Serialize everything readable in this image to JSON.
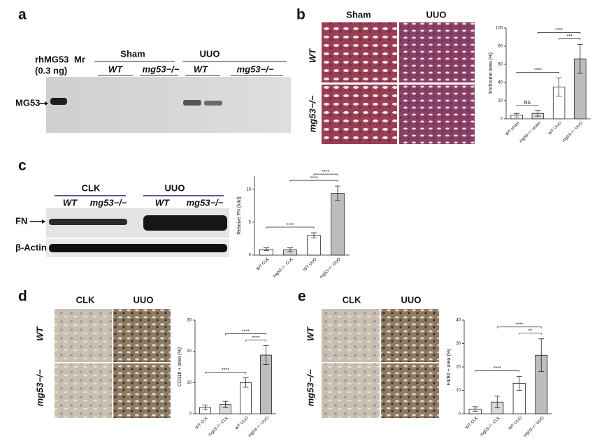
{
  "figure": {
    "a": {
      "letter": "a",
      "standard": "rhMG53",
      "standard_amount": "(0.3 ng)",
      "marker": "Mr",
      "groups": [
        "Sham",
        "UUO"
      ],
      "genotypes": [
        "WT",
        "mg53−/−",
        "WT",
        "mg53−/−"
      ],
      "band": "MG53"
    },
    "b": {
      "letter": "b",
      "columns": [
        "Sham",
        "UUO"
      ],
      "rows": [
        "WT",
        "mg53−/−"
      ]
    },
    "c": {
      "letter": "c",
      "groups": [
        "CLK",
        "UUO"
      ],
      "genotypes": [
        "WT",
        "mg53−/−",
        "WT",
        "mg53−/−"
      ],
      "bands": [
        "FN",
        "β-Actin"
      ]
    },
    "d": {
      "letter": "d",
      "columns": [
        "CLK",
        "UUO"
      ],
      "rows": [
        "WT",
        "mg53−/−"
      ]
    },
    "e": {
      "letter": "e",
      "columns": [
        "CLK",
        "UUO"
      ],
      "rows": [
        "WT",
        "mg53−/−"
      ]
    }
  },
  "chart_data": [
    {
      "type": "bar",
      "y_label": "Trichrome area (%)",
      "categories": [
        "WT sham",
        "mg53−/− sham",
        "WT UUO",
        "mg53−/− UUO"
      ],
      "values": [
        4,
        6,
        35,
        66
      ],
      "errors": [
        2,
        3,
        10,
        16
      ],
      "colors": [
        "#ffffff",
        "#d9d9d9",
        "#ffffff",
        "#bdbdbd"
      ],
      "ylim": [
        0,
        100
      ],
      "yticks": [
        0,
        20,
        40,
        60,
        80,
        100
      ],
      "comparisons": [
        {
          "pair": [
            0,
            1
          ],
          "label": "NS"
        },
        {
          "pair": [
            0,
            2
          ],
          "label": "****"
        },
        {
          "pair": [
            2,
            3
          ],
          "label": "***"
        },
        {
          "pair": [
            1,
            3
          ],
          "label": "****"
        }
      ]
    },
    {
      "type": "bar",
      "y_label": "Relative FN (fold)",
      "categories": [
        "WT CLK",
        "mg53−/− CLK",
        "WT UUO",
        "mg53−/− UUO"
      ],
      "values": [
        0.9,
        0.8,
        3.0,
        9.4
      ],
      "errors": [
        0.2,
        0.3,
        0.4,
        1.1
      ],
      "colors": [
        "#ffffff",
        "#d9d9d9",
        "#ffffff",
        "#bdbdbd"
      ],
      "ylim": [
        0,
        12
      ],
      "yticks": [
        0,
        5,
        10
      ],
      "comparisons": [
        {
          "pair": [
            0,
            2
          ],
          "label": "****"
        },
        {
          "pair": [
            1,
            3
          ],
          "label": "****"
        },
        {
          "pair": [
            2,
            3
          ],
          "label": "****"
        }
      ]
    },
    {
      "type": "bar",
      "y_label": "CD11b + area (%)",
      "categories": [
        "WT CLK",
        "mg53−/− CLK",
        "WT UUO",
        "mg53−/− UUO"
      ],
      "values": [
        2,
        3,
        10,
        18.8
      ],
      "errors": [
        0.8,
        1,
        1.5,
        3
      ],
      "colors": [
        "#ffffff",
        "#d9d9d9",
        "#ffffff",
        "#bdbdbd"
      ],
      "ylim": [
        0,
        30
      ],
      "yticks": [
        0,
        10,
        20,
        30
      ],
      "comparisons": [
        {
          "pair": [
            0,
            2
          ],
          "label": "****"
        },
        {
          "pair": [
            2,
            3
          ],
          "label": "****"
        },
        {
          "pair": [
            1,
            3
          ],
          "label": "****"
        }
      ]
    },
    {
      "type": "bar",
      "y_label": "F4/80 + area (%)",
      "categories": [
        "WT CLK",
        "mg53−/− CLK",
        "WT UUO",
        "mg53−/− UUO"
      ],
      "values": [
        2,
        5,
        13,
        25
      ],
      "errors": [
        1,
        2.5,
        3,
        7
      ],
      "colors": [
        "#ffffff",
        "#d9d9d9",
        "#ffffff",
        "#bdbdbd"
      ],
      "ylim": [
        0,
        40
      ],
      "yticks": [
        0,
        10,
        20,
        30,
        40
      ],
      "comparisons": [
        {
          "pair": [
            0,
            2
          ],
          "label": "****"
        },
        {
          "pair": [
            2,
            3
          ],
          "label": "**"
        },
        {
          "pair": [
            1,
            3
          ],
          "label": "****"
        }
      ]
    }
  ]
}
